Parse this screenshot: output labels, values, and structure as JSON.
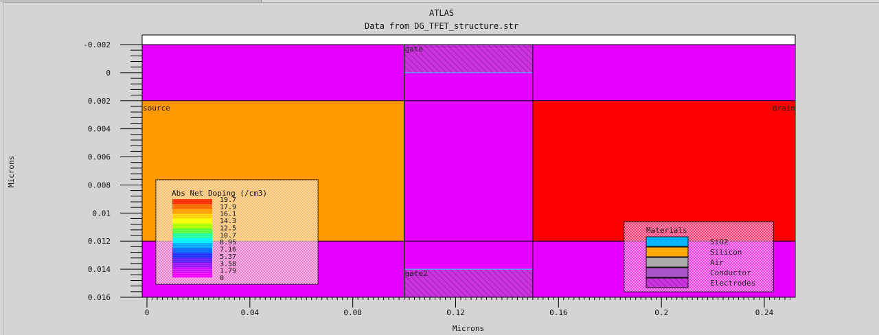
{
  "chart_data": {
    "type": "heatmap",
    "title": "ATLAS",
    "subtitle": "Data from DG_TFET_structure.str",
    "xlabel": "Microns",
    "ylabel": "Microns",
    "xlim": [
      -0.003,
      0.252
    ],
    "ylim": [
      -0.0025,
      0.016
    ],
    "y_inverted": true,
    "x_ticks": [
      0,
      0.04,
      0.08,
      0.12,
      0.16,
      0.2,
      0.24
    ],
    "x_tick_labels": [
      "0",
      "0.04",
      "0.08",
      "0.12",
      "0.16",
      "0.2",
      "0.24"
    ],
    "y_ticks": [
      -0.002,
      0,
      0.002,
      0.004,
      0.006,
      0.008,
      0.01,
      0.012,
      0.014,
      0.016
    ],
    "y_tick_labels": [
      "-0.002",
      "0",
      "0.002",
      "0.004",
      "0.006",
      "0.008",
      "0.01",
      "0.012",
      "0.014",
      "0.016"
    ],
    "regions": [
      {
        "material": "Conductor",
        "x": [
          -0.002,
          0.252
        ],
        "y": [
          -0.002,
          0.002
        ],
        "color": "#e600ff"
      },
      {
        "material": "Silicon",
        "x": [
          -0.002,
          0.1
        ],
        "y": [
          0.002,
          0.012
        ],
        "color": "#ff9900"
      },
      {
        "material": "Conductor",
        "x": [
          0.1,
          0.15
        ],
        "y": [
          0.002,
          0.012
        ],
        "color": "#e600ff"
      },
      {
        "material": "Silicon",
        "x": [
          0.15,
          0.252
        ],
        "y": [
          0.002,
          0.012
        ],
        "color": "#ff0000"
      },
      {
        "material": "Conductor",
        "x": [
          -0.002,
          0.252
        ],
        "y": [
          0.012,
          0.016
        ],
        "color": "#e600ff"
      }
    ],
    "electrodes": [
      {
        "name": "gate",
        "x": [
          0.1,
          0.15
        ],
        "y": [
          -0.002,
          0
        ]
      },
      {
        "name": "gate2",
        "x": [
          0.1,
          0.15
        ],
        "y": [
          0.014,
          0.016
        ]
      },
      {
        "name": "source",
        "x": [
          -0.002,
          -0.002
        ],
        "y": [
          0.002,
          0.012
        ]
      },
      {
        "name": "drain",
        "x": [
          0.252,
          0.252
        ],
        "y": [
          0.002,
          0.012
        ]
      }
    ],
    "doping_legend": {
      "title": "Abs Net Doping (/cm3)",
      "levels": [
        "19.7",
        "17.9",
        "16.1",
        "14.3",
        "12.5",
        "10.7",
        "8.95",
        "7.16",
        "5.37",
        "3.58",
        "1.79",
        "0"
      ]
    },
    "materials_legend": {
      "title": "Materials",
      "items": [
        {
          "label": "SiO2",
          "color": "#00b4ff"
        },
        {
          "label": "Silicon",
          "color": "#ffa800"
        },
        {
          "label": "Air",
          "color": "#aaaaaa"
        },
        {
          "label": "Conductor",
          "color": "#aa55cc"
        },
        {
          "label": "Electrodes",
          "color": "#e9a6ff"
        }
      ]
    }
  }
}
